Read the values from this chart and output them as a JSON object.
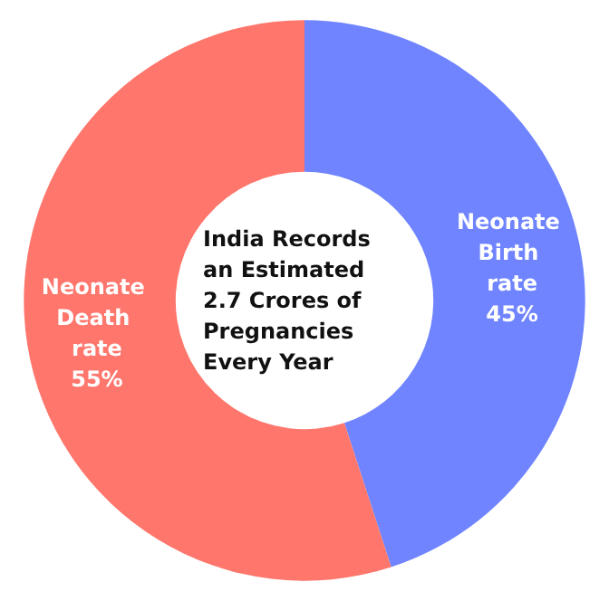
{
  "chart_data": {
    "type": "donut",
    "title": "India Records an Estimated 2.7 Crores of Pregnancies Every Year",
    "categories": [
      "Neonate Birth rate",
      "Neonate Death rate"
    ],
    "values": [
      45,
      55
    ],
    "value_labels": [
      "45%",
      "55%"
    ],
    "colors": [
      "#6f84fe",
      "#fe766c"
    ],
    "legend": false
  }
}
